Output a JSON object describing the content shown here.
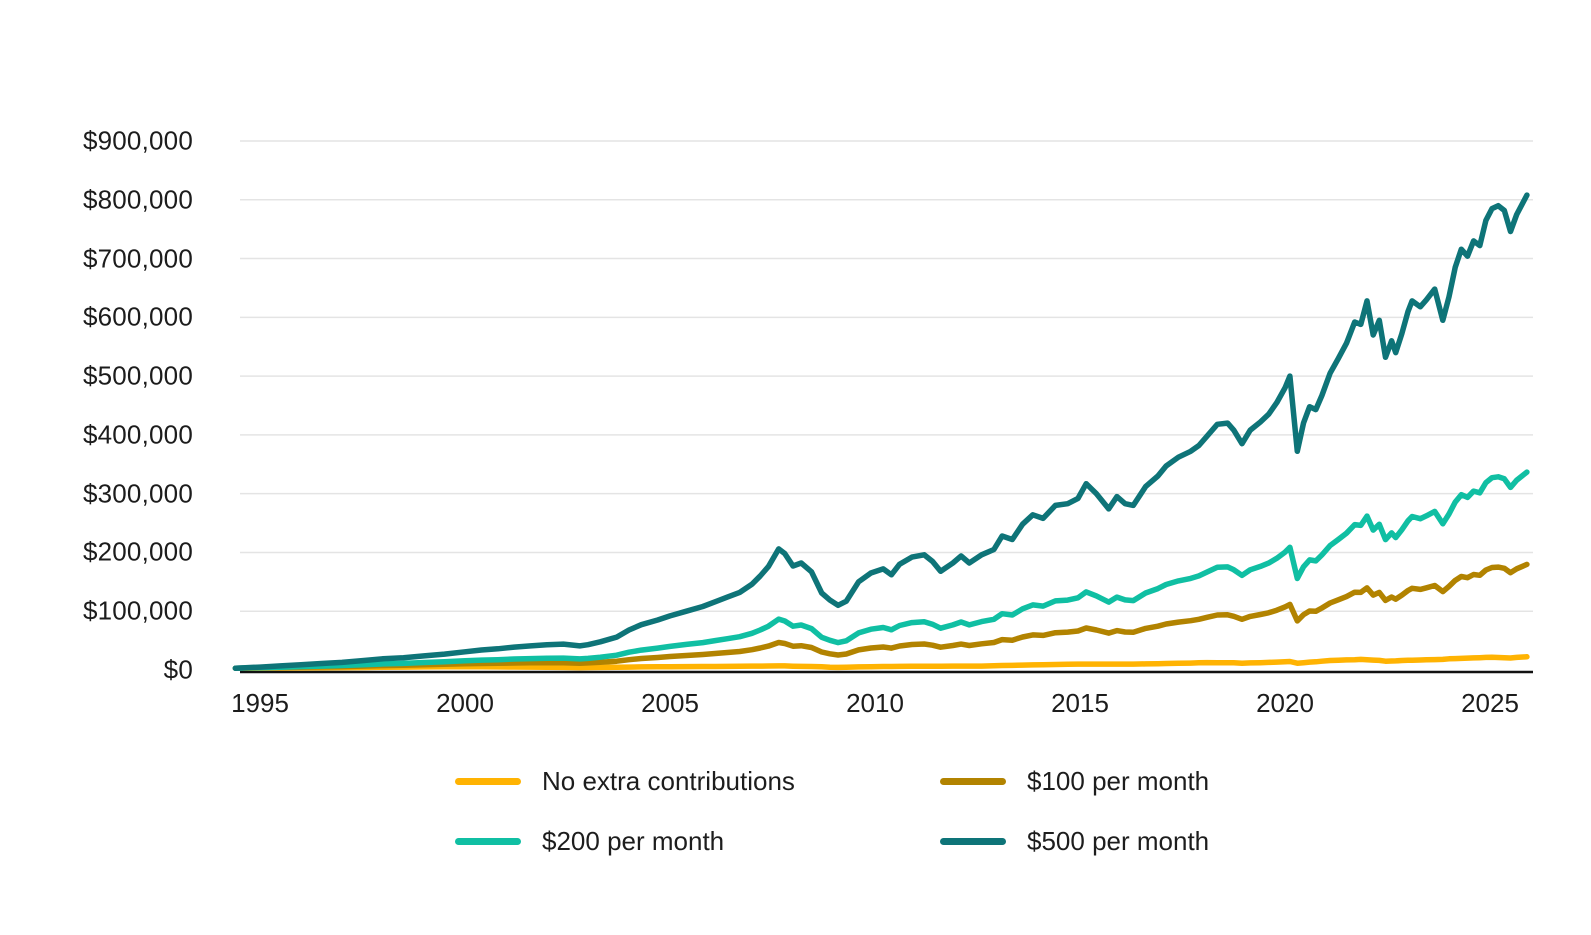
{
  "chart_data": {
    "type": "line",
    "title": "",
    "xlabel": "",
    "ylabel": "",
    "grid": "horizontal",
    "legend_position": "bottom",
    "x_range": [
      1994.4,
      2026.2
    ],
    "ylim": [
      0,
      900000
    ],
    "y_ticks": [
      {
        "value": 0,
        "label": "$0"
      },
      {
        "value": 100000,
        "label": "$100,000"
      },
      {
        "value": 200000,
        "label": "$200,000"
      },
      {
        "value": 300000,
        "label": "$300,000"
      },
      {
        "value": 400000,
        "label": "$400,000"
      },
      {
        "value": 500000,
        "label": "$500,000"
      },
      {
        "value": 600000,
        "label": "$600,000"
      },
      {
        "value": 700000,
        "label": "$700,000"
      },
      {
        "value": 800000,
        "label": "$800,000"
      },
      {
        "value": 900000,
        "label": "$900,000"
      }
    ],
    "x_ticks": [
      {
        "value": 1995,
        "label": "1995"
      },
      {
        "value": 2000,
        "label": "2000"
      },
      {
        "value": 2005,
        "label": "2005"
      },
      {
        "value": 2010,
        "label": "2010"
      },
      {
        "value": 2015,
        "label": "2015"
      },
      {
        "value": 2020,
        "label": "2020"
      },
      {
        "value": 2025,
        "label": "2025"
      }
    ],
    "x": [
      1994.4,
      1994.7,
      1995.0,
      1995.5,
      1996.0,
      1996.5,
      1997.0,
      1997.5,
      1998.0,
      1998.5,
      1999.0,
      1999.5,
      2000.0,
      2000.4,
      2000.8,
      2001.2,
      2001.6,
      2002.0,
      2002.4,
      2002.8,
      2003.0,
      2003.3,
      2003.7,
      2004.0,
      2004.3,
      2004.7,
      2005.0,
      2005.4,
      2005.8,
      2006.1,
      2006.4,
      2006.7,
      2007.0,
      2007.2,
      2007.4,
      2007.65,
      2007.8,
      2008.0,
      2008.2,
      2008.45,
      2008.7,
      2008.9,
      2009.1,
      2009.3,
      2009.6,
      2009.9,
      2010.2,
      2010.4,
      2010.6,
      2010.9,
      2011.2,
      2011.4,
      2011.6,
      2011.9,
      2012.1,
      2012.3,
      2012.6,
      2012.9,
      2013.1,
      2013.35,
      2013.6,
      2013.85,
      2014.1,
      2014.4,
      2014.7,
      2014.95,
      2015.15,
      2015.4,
      2015.7,
      2015.9,
      2016.1,
      2016.3,
      2016.6,
      2016.9,
      2017.1,
      2017.4,
      2017.7,
      2017.9,
      2018.1,
      2018.35,
      2018.6,
      2018.75,
      2018.95,
      2019.15,
      2019.4,
      2019.6,
      2019.8,
      2020.0,
      2020.12,
      2020.3,
      2020.45,
      2020.6,
      2020.75,
      2020.9,
      2021.1,
      2021.3,
      2021.5,
      2021.7,
      2021.85,
      2022.0,
      2022.15,
      2022.3,
      2022.45,
      2022.6,
      2022.7,
      2022.85,
      2023.0,
      2023.1,
      2023.3,
      2023.45,
      2023.65,
      2023.85,
      2024.0,
      2024.15,
      2024.3,
      2024.45,
      2024.6,
      2024.75,
      2024.9,
      2025.05,
      2025.2,
      2025.35,
      2025.5,
      2025.65,
      2025.9
    ],
    "series": [
      {
        "name": "No extra contributions",
        "color": "#FFB302",
        "values": [
          3000,
          3100,
          3200,
          3400,
          3600,
          3800,
          4000,
          4300,
          4600,
          4900,
          5200,
          5400,
          5600,
          5400,
          5300,
          5100,
          5000,
          4800,
          4400,
          4000,
          4200,
          4400,
          4700,
          5000,
          5200,
          5400,
          5600,
          5800,
          5900,
          6000,
          6200,
          6400,
          6600,
          6700,
          6800,
          7000,
          6900,
          6400,
          6200,
          6000,
          5500,
          4800,
          4500,
          4800,
          5200,
          5600,
          5900,
          6000,
          6100,
          6300,
          6400,
          6500,
          6500,
          6600,
          6600,
          6600,
          6700,
          7200,
          7600,
          7900,
          8300,
          8700,
          9100,
          9400,
          9700,
          10000,
          10100,
          10100,
          10000,
          10000,
          10000,
          10100,
          10400,
          10800,
          11100,
          11400,
          11800,
          12200,
          12600,
          12500,
          12400,
          12200,
          11500,
          12000,
          12500,
          13000,
          13500,
          14200,
          14500,
          11500,
          12500,
          13500,
          14000,
          15000,
          16200,
          16700,
          17100,
          17500,
          18000,
          17600,
          16900,
          16400,
          15000,
          15300,
          15500,
          16100,
          16500,
          16700,
          17000,
          17300,
          17700,
          18000,
          19000,
          19400,
          19800,
          20200,
          20600,
          21000,
          21500,
          21800,
          21200,
          20800,
          20500,
          21500,
          22500
        ]
      },
      {
        "name": "$100 per month",
        "color": "#B28300",
        "values": [
          3000,
          3300,
          3600,
          4100,
          4700,
          5200,
          5800,
          6600,
          7500,
          8100,
          9000,
          9700,
          10700,
          11100,
          11400,
          11900,
          12200,
          12400,
          12300,
          11400,
          12000,
          13100,
          15000,
          17600,
          19600,
          21300,
          22900,
          24600,
          26300,
          28000,
          29800,
          31500,
          34500,
          37400,
          40600,
          46800,
          45100,
          40500,
          41400,
          38200,
          30600,
          27600,
          25600,
          27200,
          34200,
          37500,
          39100,
          37200,
          40900,
          43400,
          44300,
          42200,
          38800,
          41700,
          44100,
          41700,
          44600,
          46800,
          51700,
          50700,
          56200,
          59800,
          58900,
          63500,
          64400,
          66400,
          71500,
          68100,
          62800,
          67000,
          64600,
          64100,
          70700,
          74600,
          78300,
          81500,
          83800,
          86200,
          89700,
          93600,
          93900,
          91400,
          86200,
          91200,
          94400,
          97400,
          101800,
          107400,
          111600,
          83600,
          94000,
          100400,
          99800,
          105400,
          114000,
          119400,
          124900,
          132400,
          132000,
          139700,
          127500,
          132100,
          118400,
          124200,
          120400,
          127300,
          135200,
          139000,
          137200,
          139800,
          143800,
          133400,
          142200,
          152500,
          159000,
          157000,
          162500,
          161200,
          170200,
          174400,
          175000,
          173000,
          165600,
          172200,
          179600
        ]
      },
      {
        "name": "$200 per month",
        "color": "#10BFA3",
        "values": [
          3000,
          3500,
          3900,
          4800,
          5800,
          6700,
          7600,
          9000,
          10400,
          11300,
          12700,
          14000,
          15800,
          16800,
          17600,
          18700,
          19400,
          20100,
          20200,
          18800,
          19700,
          21800,
          25200,
          30200,
          33900,
          37200,
          40200,
          43500,
          46700,
          50000,
          53300,
          56600,
          62400,
          68000,
          74500,
          86600,
          83300,
          74600,
          76500,
          70400,
          55700,
          50500,
          46700,
          49700,
          63100,
          69400,
          72300,
          68400,
          75700,
          80600,
          82200,
          77900,
          71100,
          76800,
          81600,
          76800,
          82400,
          86300,
          95800,
          93500,
          104200,
          110800,
          108700,
          117600,
          119000,
          122800,
          132900,
          126100,
          115600,
          124000,
          119200,
          118100,
          131000,
          138500,
          145500,
          151600,
          155900,
          160100,
          166800,
          174700,
          175400,
          170500,
          160900,
          170400,
          176300,
          181800,
          190100,
          200500,
          208700,
          155700,
          175500,
          187300,
          185600,
          195800,
          211700,
          222000,
          232700,
          247300,
          246000,
          261800,
          238100,
          247800,
          221800,
          233200,
          225300,
          238500,
          253900,
          261200,
          257400,
          262400,
          269800,
          248800,
          265400,
          285600,
          298300,
          293700,
          304400,
          301400,
          318900,
          327100,
          328700,
          325300,
          310700,
          322900,
          336700
        ]
      },
      {
        "name": "$500 per month",
        "color": "#0E7478",
        "values": [
          3000,
          4000,
          5000,
          7000,
          9000,
          11000,
          13000,
          16000,
          19000,
          21000,
          24000,
          27000,
          31000,
          34000,
          36000,
          39000,
          41000,
          43000,
          44000,
          41000,
          43000,
          48000,
          56000,
          68000,
          77000,
          85000,
          92000,
          100000,
          108000,
          116000,
          124000,
          132000,
          146000,
          160000,
          176000,
          206000,
          198000,
          177000,
          182000,
          167000,
          131000,
          119000,
          110000,
          117000,
          150000,
          165000,
          172000,
          162000,
          180000,
          192000,
          196000,
          185000,
          168000,
          182000,
          194000,
          182000,
          196000,
          205000,
          228000,
          222000,
          248000,
          264000,
          258000,
          280000,
          283000,
          292000,
          317000,
          300000,
          274000,
          295000,
          283000,
          280000,
          312000,
          330000,
          347000,
          362000,
          372000,
          382000,
          398000,
          418000,
          420000,
          408000,
          385000,
          408000,
          422000,
          435000,
          455000,
          480000,
          500000,
          372000,
          420000,
          448000,
          443000,
          467000,
          505000,
          530000,
          556000,
          592000,
          588000,
          628000,
          570000,
          595000,
          532000,
          560000,
          540000,
          572000,
          610000,
          628000,
          618000,
          630000,
          648000,
          595000,
          635000,
          685000,
          716000,
          704000,
          730000,
          722000,
          765000,
          785000,
          790000,
          782000,
          746000,
          775000,
          808000
        ]
      }
    ]
  },
  "colors": {
    "background": "#ffffff",
    "gridline": "#E4E4E4",
    "baseline": "#111111",
    "tick_text": "#1c1c1c",
    "legend_text": "#1d1d1d"
  }
}
